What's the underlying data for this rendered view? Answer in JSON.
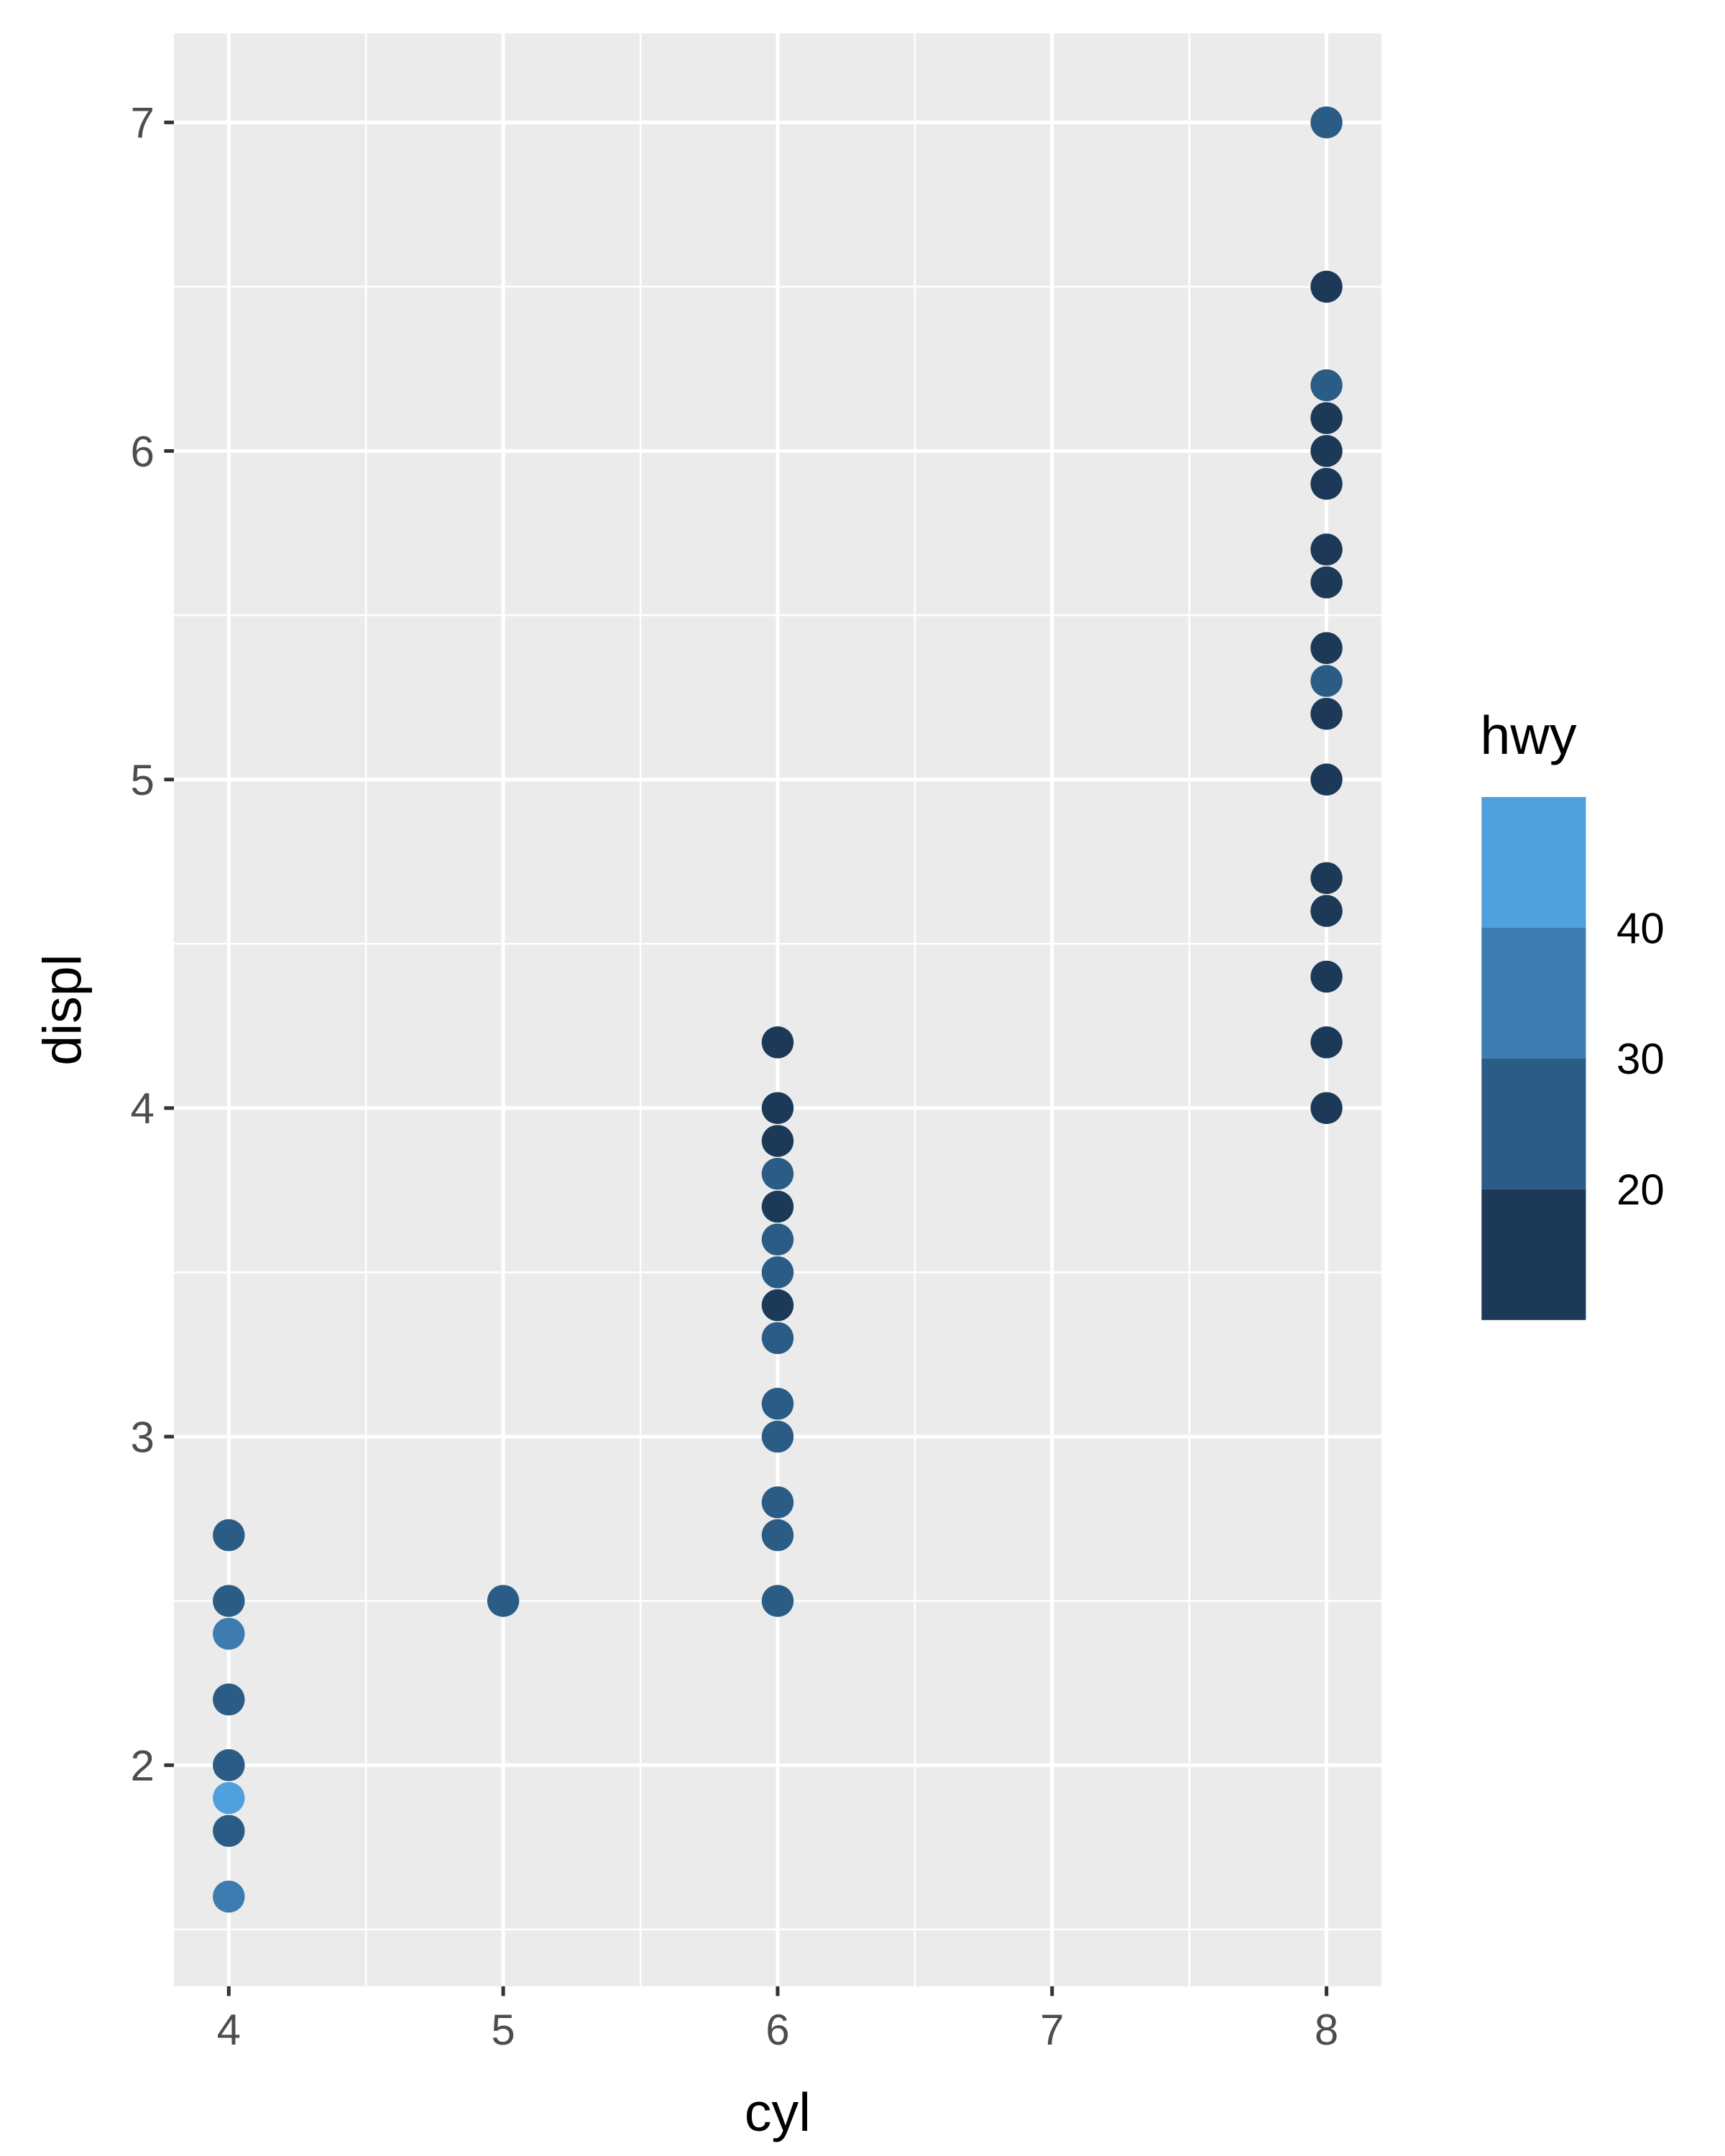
{
  "chart_data": {
    "type": "scatter",
    "title": "",
    "xlabel": "cyl",
    "ylabel": "displ",
    "xlim": [
      3.8,
      8.2
    ],
    "ylim": [
      1.327,
      7.271
    ],
    "x_ticks": [
      4,
      5,
      6,
      7,
      8
    ],
    "y_ticks": [
      2,
      3,
      4,
      5,
      6,
      7
    ],
    "grid": true,
    "legend": {
      "title": "hwy",
      "placement": "right",
      "type": "binned colorbar",
      "labels": [
        "40",
        "30",
        "20"
      ],
      "bins": [
        {
          "range": "> 40",
          "color": "#4FA0DC"
        },
        {
          "range": "30-40",
          "color": "#3D7BB0"
        },
        {
          "range": "20-30",
          "color": "#2B5C85"
        },
        {
          "range": "< 20",
          "color": "#1C3A58"
        }
      ]
    },
    "points": [
      {
        "cyl": 8,
        "displ": 7.0,
        "bin": 2
      },
      {
        "cyl": 8,
        "displ": 6.5,
        "bin": 3
      },
      {
        "cyl": 8,
        "displ": 6.2,
        "bin": 2
      },
      {
        "cyl": 8,
        "displ": 6.1,
        "bin": 3
      },
      {
        "cyl": 8,
        "displ": 6.0,
        "bin": 3
      },
      {
        "cyl": 8,
        "displ": 5.9,
        "bin": 3
      },
      {
        "cyl": 8,
        "displ": 5.7,
        "bin": 3
      },
      {
        "cyl": 8,
        "displ": 5.6,
        "bin": 3
      },
      {
        "cyl": 8,
        "displ": 5.4,
        "bin": 3
      },
      {
        "cyl": 8,
        "displ": 5.3,
        "bin": 2
      },
      {
        "cyl": 8,
        "displ": 5.2,
        "bin": 3
      },
      {
        "cyl": 8,
        "displ": 5.0,
        "bin": 3
      },
      {
        "cyl": 8,
        "displ": 4.7,
        "bin": 3
      },
      {
        "cyl": 8,
        "displ": 4.6,
        "bin": 3
      },
      {
        "cyl": 8,
        "displ": 4.4,
        "bin": 3
      },
      {
        "cyl": 8,
        "displ": 4.2,
        "bin": 3
      },
      {
        "cyl": 8,
        "displ": 4.0,
        "bin": 3
      },
      {
        "cyl": 6,
        "displ": 4.2,
        "bin": 3
      },
      {
        "cyl": 6,
        "displ": 4.0,
        "bin": 3
      },
      {
        "cyl": 6,
        "displ": 3.9,
        "bin": 3
      },
      {
        "cyl": 6,
        "displ": 3.8,
        "bin": 2
      },
      {
        "cyl": 6,
        "displ": 3.7,
        "bin": 3
      },
      {
        "cyl": 6,
        "displ": 3.6,
        "bin": 2
      },
      {
        "cyl": 6,
        "displ": 3.5,
        "bin": 2
      },
      {
        "cyl": 6,
        "displ": 3.4,
        "bin": 3
      },
      {
        "cyl": 6,
        "displ": 3.3,
        "bin": 2
      },
      {
        "cyl": 6,
        "displ": 3.1,
        "bin": 2
      },
      {
        "cyl": 6,
        "displ": 3.0,
        "bin": 2
      },
      {
        "cyl": 6,
        "displ": 2.8,
        "bin": 2
      },
      {
        "cyl": 6,
        "displ": 2.7,
        "bin": 2
      },
      {
        "cyl": 6,
        "displ": 2.5,
        "bin": 2
      },
      {
        "cyl": 5,
        "displ": 2.5,
        "bin": 2
      },
      {
        "cyl": 4,
        "displ": 2.7,
        "bin": 2
      },
      {
        "cyl": 4,
        "displ": 2.5,
        "bin": 2
      },
      {
        "cyl": 4,
        "displ": 2.4,
        "bin": 1
      },
      {
        "cyl": 4,
        "displ": 2.2,
        "bin": 2
      },
      {
        "cyl": 4,
        "displ": 2.0,
        "bin": 2
      },
      {
        "cyl": 4,
        "displ": 1.9,
        "bin": 0
      },
      {
        "cyl": 4,
        "displ": 1.8,
        "bin": 2
      },
      {
        "cyl": 4,
        "displ": 1.6,
        "bin": 1
      }
    ]
  }
}
